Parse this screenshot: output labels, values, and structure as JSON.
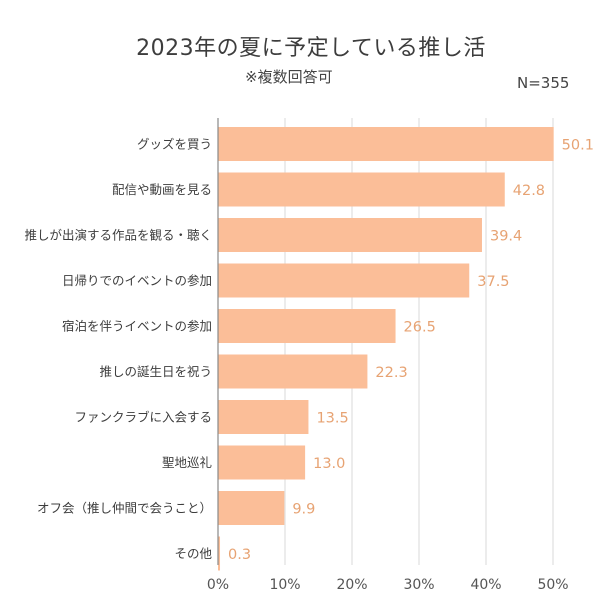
{
  "chart_data": {
    "type": "bar",
    "orientation": "horizontal",
    "title": "2023年の夏に予定している推し活",
    "subtitle": "※複数回答可",
    "sample_size": "N=355",
    "categories": [
      "グッズを買う",
      "配信や動画を見る",
      "推しが出演する作品を観る・聴く",
      "日帰りでのイベントの参加",
      "宿泊を伴うイベントの参加",
      "推しの誕生日を祝う",
      "ファンクラブに入会する",
      "聖地巡礼",
      "オフ会（推し仲間で会うこと）",
      "その他"
    ],
    "values": [
      50.1,
      42.8,
      39.4,
      37.5,
      26.5,
      22.3,
      13.5,
      13.0,
      9.9,
      0.3
    ],
    "value_labels": [
      "50.1",
      "42.8",
      "39.4",
      "37.5",
      "26.5",
      "22.3",
      "13.5",
      "13.0",
      "9.9",
      "0.3"
    ],
    "xlim": [
      0,
      50
    ],
    "xticks": [
      0,
      10,
      20,
      30,
      40,
      50
    ],
    "xtick_labels": [
      "0%",
      "10%",
      "20%",
      "30%",
      "40%",
      "50%"
    ],
    "grid": true,
    "xlabel": "",
    "ylabel": "",
    "colors": {
      "bar": "#FBBE98",
      "value_label": "#E7A373",
      "grid": "#DADADA",
      "axis": "#888888"
    }
  }
}
